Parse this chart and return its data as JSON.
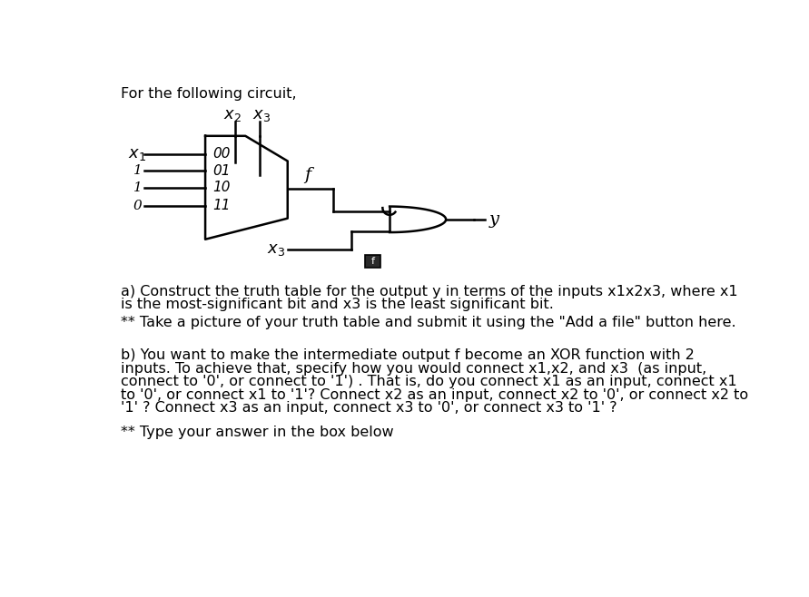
{
  "title": "For the following circuit,",
  "bg_color": "#ffffff",
  "text_color": "#000000",
  "part_a_line1": "a) Construct the truth table for the output y in terms of the inputs x1x2x3, where x1",
  "part_a_line2": "is the most-significant bit and x3 is the least significant bit.",
  "part_a_note": "** Take a picture of your truth table and submit it using the \"Add a file\" button here.",
  "part_b_line1": "b) You want to make the intermediate output f become an XOR function with 2",
  "part_b_line2": "inputs. To achieve that, specify how you would connect x1,x2, and x3  (as input,",
  "part_b_line3": "connect to '0', or connect to '1') . That is, do you connect x1 as an input, connect x1",
  "part_b_line4": "to '0', or connect x1 to '1'? Connect x2 as an input, connect x2 to '0', or connect x2 to",
  "part_b_line5": "'1' ? Connect x3 as an input, connect x3 to '0', or connect x3 to '1' ?",
  "part_b_note": "** Type your answer in the box below",
  "mux_labels": [
    "00",
    "01",
    "10",
    "11"
  ],
  "left_labels": [
    "x1",
    "1",
    "1",
    "0"
  ],
  "font_size_main": 11.5
}
